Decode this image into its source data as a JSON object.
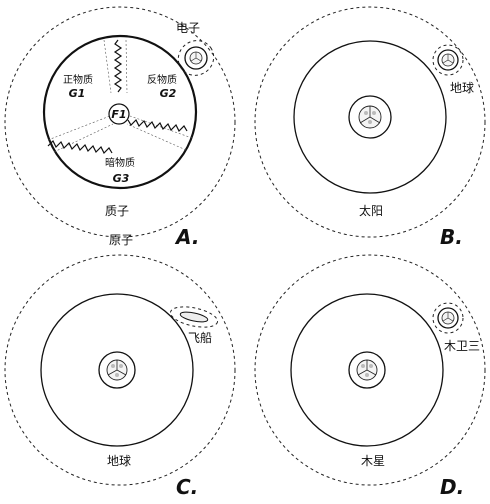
{
  "panels": {
    "A": {
      "letter": "A.",
      "outer_label": "原子",
      "inner_label": "质子",
      "satellite_label": "电子",
      "regions": {
        "g1_name": "正物质",
        "g1_tag": "G1",
        "g2_name": "反物质",
        "g2_tag": "G2",
        "g3_name": "暗物质",
        "g3_tag": "G3",
        "center_tag": "F1"
      }
    },
    "B": {
      "letter": "B.",
      "center_label": "太阳",
      "satellite_label": "地球"
    },
    "C": {
      "letter": "C.",
      "center_label": "地球",
      "satellite_label": "飞船"
    },
    "D": {
      "letter": "D.",
      "center_label": "木星",
      "satellite_label": "木卫三"
    }
  }
}
